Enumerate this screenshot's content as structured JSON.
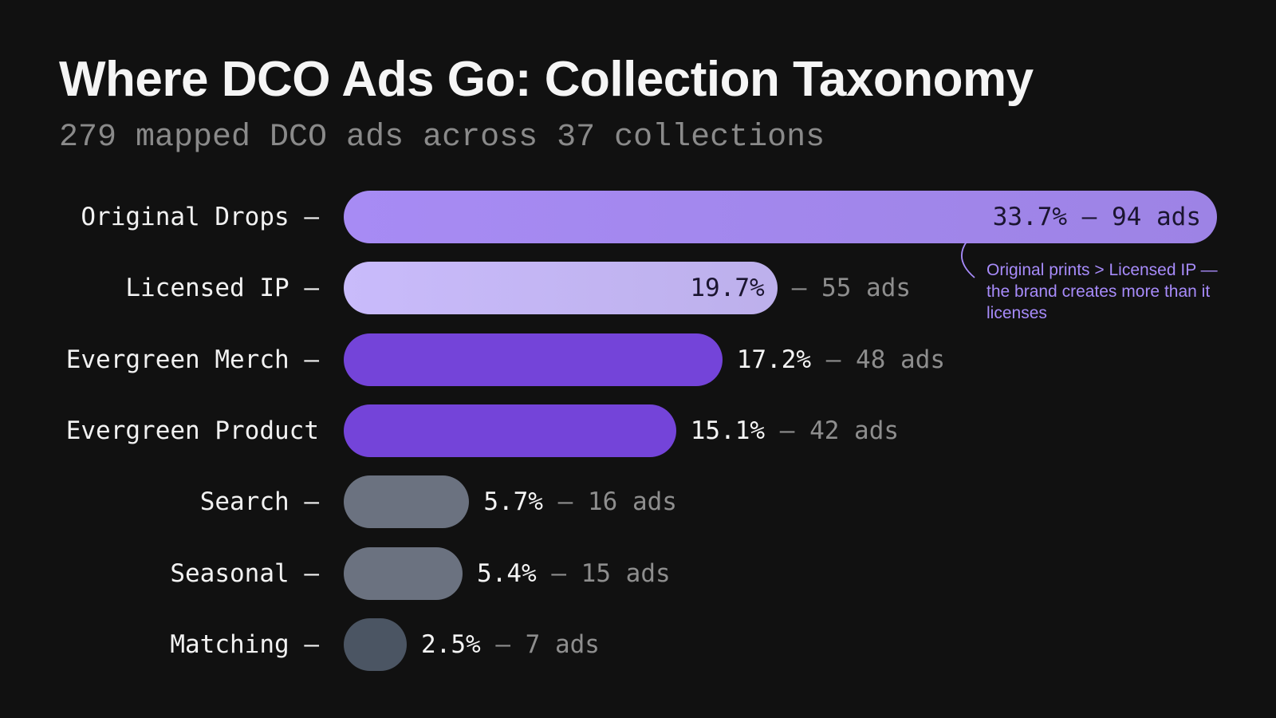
{
  "title": "Where DCO Ads Go: Collection Taxonomy",
  "subtitle": "279 mapped DCO ads across 37 collections",
  "annotation": "Original prints > Licensed IP — the brand creates more than it licenses",
  "chart_data": {
    "type": "bar",
    "orientation": "horizontal",
    "title": "Where DCO Ads Go: Collection Taxonomy",
    "subtitle": "279 mapped DCO ads across 37 collections",
    "categories": [
      "Original Drops —",
      "Licensed IP —",
      "Evergreen Merch —",
      "Evergreen Product",
      "Search —",
      "Seasonal —",
      "Matching —"
    ],
    "values": [
      33.7,
      19.7,
      17.2,
      15.1,
      5.7,
      5.4,
      2.5
    ],
    "counts": [
      94,
      55,
      48,
      42,
      16,
      15,
      7
    ],
    "pct_labels": [
      "33.7%",
      "19.7%",
      "17.2%",
      "15.1%",
      "5.7%",
      "5.4%",
      "2.5%"
    ],
    "count_labels": [
      "— 94 ads",
      "— 55 ads",
      "— 48 ads",
      "— 42 ads",
      "— 16 ads",
      "— 15 ads",
      "— 7 ads"
    ],
    "colors": [
      "#a78bf4",
      "#c9bbfb",
      "#7444d9",
      "#7444d9",
      "#6b7280",
      "#6b7280",
      "#4b5563"
    ],
    "grid": false,
    "legend": "none"
  }
}
